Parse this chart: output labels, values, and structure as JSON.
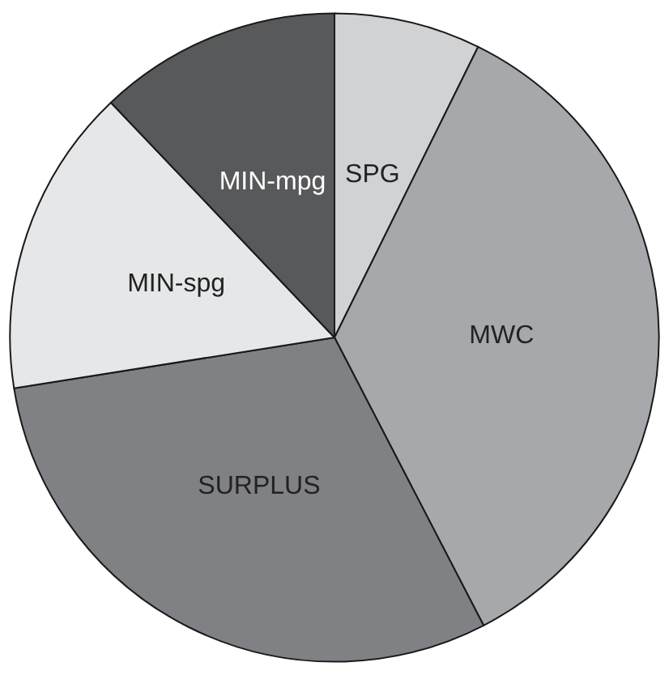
{
  "chart_data": {
    "type": "pie",
    "categories": [
      "SPG",
      "MWC",
      "SURPLUS",
      "MIN-spg",
      "MIN-mpg"
    ],
    "values": [
      7.3,
      35.1,
      30.1,
      15.4,
      12.1
    ],
    "colors": [
      "#d1d2d4",
      "#a7a8ab",
      "#808185",
      "#e6e7e8",
      "#58595b"
    ],
    "legend": false
  }
}
